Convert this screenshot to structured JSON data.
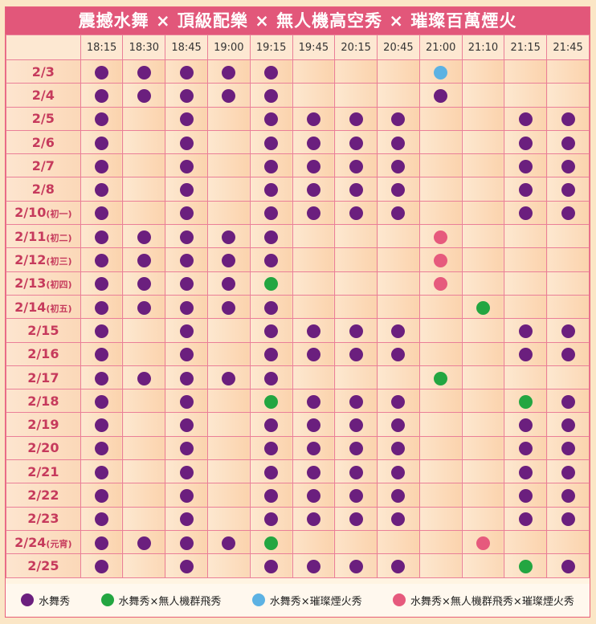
{
  "title": "震撼水舞 × 頂級配樂 × 無人機高空秀 × 璀璨百萬煙火",
  "colors": {
    "P": "#6b1f7e",
    "G": "#23a641",
    "B": "#5cb2e3",
    "R": "#e65a7d"
  },
  "times": [
    "18:15",
    "18:30",
    "18:45",
    "19:00",
    "19:15",
    "19:45",
    "20:15",
    "20:45",
    "21:00",
    "21:10",
    "21:15",
    "21:45"
  ],
  "rows": [
    {
      "date": "2/3",
      "note": "",
      "marks": [
        "P",
        "P",
        "P",
        "P",
        "P",
        "",
        "",
        "",
        "B",
        "",
        "",
        ""
      ]
    },
    {
      "date": "2/4",
      "note": "",
      "marks": [
        "P",
        "P",
        "P",
        "P",
        "P",
        "",
        "",
        "",
        "P",
        "",
        "",
        ""
      ]
    },
    {
      "date": "2/5",
      "note": "",
      "marks": [
        "P",
        "",
        "P",
        "",
        "P",
        "P",
        "P",
        "P",
        "",
        "",
        "P",
        "P"
      ]
    },
    {
      "date": "2/6",
      "note": "",
      "marks": [
        "P",
        "",
        "P",
        "",
        "P",
        "P",
        "P",
        "P",
        "",
        "",
        "P",
        "P"
      ]
    },
    {
      "date": "2/7",
      "note": "",
      "marks": [
        "P",
        "",
        "P",
        "",
        "P",
        "P",
        "P",
        "P",
        "",
        "",
        "P",
        "P"
      ]
    },
    {
      "date": "2/8",
      "note": "",
      "marks": [
        "P",
        "",
        "P",
        "",
        "P",
        "P",
        "P",
        "P",
        "",
        "",
        "P",
        "P"
      ]
    },
    {
      "date": "2/10",
      "note": "(初一)",
      "marks": [
        "P",
        "",
        "P",
        "",
        "P",
        "P",
        "P",
        "P",
        "",
        "",
        "P",
        "P"
      ]
    },
    {
      "date": "2/11",
      "note": "(初二)",
      "marks": [
        "P",
        "P",
        "P",
        "P",
        "P",
        "",
        "",
        "",
        "R",
        "",
        "",
        ""
      ]
    },
    {
      "date": "2/12",
      "note": "(初三)",
      "marks": [
        "P",
        "P",
        "P",
        "P",
        "P",
        "",
        "",
        "",
        "R",
        "",
        "",
        ""
      ]
    },
    {
      "date": "2/13",
      "note": "(初四)",
      "marks": [
        "P",
        "P",
        "P",
        "P",
        "G",
        "",
        "",
        "",
        "R",
        "",
        "",
        ""
      ]
    },
    {
      "date": "2/14",
      "note": "(初五)",
      "marks": [
        "P",
        "P",
        "P",
        "P",
        "P",
        "",
        "",
        "",
        "",
        "G",
        "",
        ""
      ]
    },
    {
      "date": "2/15",
      "note": "",
      "marks": [
        "P",
        "",
        "P",
        "",
        "P",
        "P",
        "P",
        "P",
        "",
        "",
        "P",
        "P"
      ]
    },
    {
      "date": "2/16",
      "note": "",
      "marks": [
        "P",
        "",
        "P",
        "",
        "P",
        "P",
        "P",
        "P",
        "",
        "",
        "P",
        "P"
      ]
    },
    {
      "date": "2/17",
      "note": "",
      "marks": [
        "P",
        "P",
        "P",
        "P",
        "P",
        "",
        "",
        "",
        "G",
        "",
        "",
        ""
      ]
    },
    {
      "date": "2/18",
      "note": "",
      "marks": [
        "P",
        "",
        "P",
        "",
        "G",
        "P",
        "P",
        "P",
        "",
        "",
        "G",
        "P"
      ]
    },
    {
      "date": "2/19",
      "note": "",
      "marks": [
        "P",
        "",
        "P",
        "",
        "P",
        "P",
        "P",
        "P",
        "",
        "",
        "P",
        "P"
      ]
    },
    {
      "date": "2/20",
      "note": "",
      "marks": [
        "P",
        "",
        "P",
        "",
        "P",
        "P",
        "P",
        "P",
        "",
        "",
        "P",
        "P"
      ]
    },
    {
      "date": "2/21",
      "note": "",
      "marks": [
        "P",
        "",
        "P",
        "",
        "P",
        "P",
        "P",
        "P",
        "",
        "",
        "P",
        "P"
      ]
    },
    {
      "date": "2/22",
      "note": "",
      "marks": [
        "P",
        "",
        "P",
        "",
        "P",
        "P",
        "P",
        "P",
        "",
        "",
        "P",
        "P"
      ]
    },
    {
      "date": "2/23",
      "note": "",
      "marks": [
        "P",
        "",
        "P",
        "",
        "P",
        "P",
        "P",
        "P",
        "",
        "",
        "P",
        "P"
      ]
    },
    {
      "date": "2/24",
      "note": "(元宵)",
      "marks": [
        "P",
        "P",
        "P",
        "P",
        "G",
        "",
        "",
        "",
        "",
        "R",
        "",
        ""
      ]
    },
    {
      "date": "2/25",
      "note": "",
      "marks": [
        "P",
        "",
        "P",
        "",
        "P",
        "P",
        "P",
        "P",
        "",
        "",
        "G",
        "P"
      ]
    }
  ],
  "legend": [
    {
      "key": "P",
      "label": "水舞秀"
    },
    {
      "key": "G",
      "label": "水舞秀×無人機群飛秀"
    },
    {
      "key": "B",
      "label": "水舞秀×璀璨煙火秀"
    },
    {
      "key": "R",
      "label": "水舞秀×無人機群飛秀×璀璨煙火秀"
    }
  ]
}
